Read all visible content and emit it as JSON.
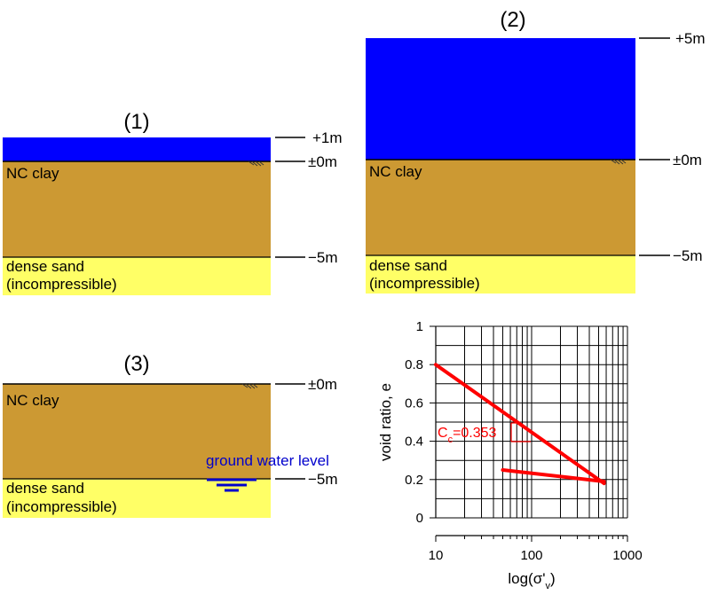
{
  "colors": {
    "water": "#0000ff",
    "clay": "#cc9933",
    "sand": "#ffff66",
    "curve": "#ff0000",
    "gwl": "#0000cc"
  },
  "panel1": {
    "title": "(1)",
    "clay_label": "NC clay",
    "sand_label_1": "dense sand",
    "sand_label_2": "(incompressible)",
    "level_top": "+1m",
    "level_mid": "±0m",
    "level_bottom": "−5m"
  },
  "panel2": {
    "title": "(2)",
    "clay_label": "NC clay",
    "sand_label_1": "dense sand",
    "sand_label_2": "(incompressible)",
    "level_top": "+5m",
    "level_mid": "±0m",
    "level_bottom": "−5m"
  },
  "panel3": {
    "title": "(3)",
    "clay_label": "NC clay",
    "sand_label_1": "dense sand",
    "sand_label_2": "(incompressible)",
    "level_mid": "±0m",
    "level_bottom": "−5m",
    "gwl_label": "ground water level"
  },
  "chart_data": {
    "type": "line",
    "ylabel_main": "void ratio, e",
    "xlabel_main": "log(σ'",
    "xlabel_sub": "v",
    "xlabel_close": ")",
    "x_scale": "log",
    "xlim": [
      10,
      1000
    ],
    "ylim": [
      0,
      1
    ],
    "x_ticks": [
      10,
      100,
      1000
    ],
    "x_tick_labels": [
      "10",
      "100",
      "1000"
    ],
    "y_ticks": [
      0,
      0.2,
      0.4,
      0.6,
      0.8,
      1
    ],
    "y_tick_labels": [
      "0",
      "0.2",
      "0.4",
      "0.6",
      "0.8",
      "1"
    ],
    "grid": true,
    "series": [
      {
        "x": [
          10,
          570
        ],
        "y": [
          0.8,
          0.18
        ]
      },
      {
        "x": [
          50,
          570
        ],
        "y": [
          0.25,
          0.19
        ]
      }
    ],
    "annotation": {
      "main": "C",
      "sub": "c",
      "rest": "=0.353"
    }
  }
}
